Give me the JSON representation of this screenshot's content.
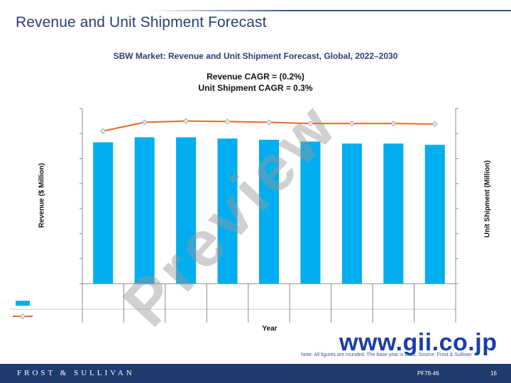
{
  "slide": {
    "title": "Revenue and Unit Shipment Forecast",
    "note": "Note: All figures are rounded. The base year is 2022. Source: Frost & Sullivan",
    "footer_brand": "FROST & SULLIVAN",
    "footer_code": "PF78-46",
    "page_number": "16"
  },
  "watermark": {
    "text": "Preview",
    "site": "www.gii.co.jp"
  },
  "colors": {
    "bar": "#00aeef",
    "line": "#e8682a",
    "marker_fill": "#e9e9e9",
    "title": "#2a3f6f",
    "footer": "#1f3b6e"
  },
  "chart_data": {
    "type": "bar",
    "title": "SBW Market: Revenue and Unit Shipment Forecast, Global, 2022–2030",
    "subtitle_lines": [
      "Revenue CAGR = (0.2%)",
      "Unit Shipment CAGR = 0.3%"
    ],
    "xlabel": "Year",
    "ylabel": "Revenue ($ Million)",
    "y2label": "Unit Shipment (Million)",
    "ylim": [
      0,
      7
    ],
    "y2lim": [
      0,
      7
    ],
    "grid": false,
    "legend_position": "bottom-left, above category table",
    "categories": [
      "",
      "",
      "",
      "",
      "",
      "",
      "",
      "",
      ""
    ],
    "series": [
      {
        "kind": "bar",
        "axis": "left",
        "values": [
          5.65,
          5.85,
          5.85,
          5.8,
          5.75,
          5.68,
          5.6,
          5.6,
          5.55
        ]
      },
      {
        "kind": "line",
        "axis": "right",
        "values": [
          6.1,
          6.45,
          6.5,
          6.48,
          6.45,
          6.4,
          6.4,
          6.4,
          6.38
        ]
      }
    ]
  }
}
